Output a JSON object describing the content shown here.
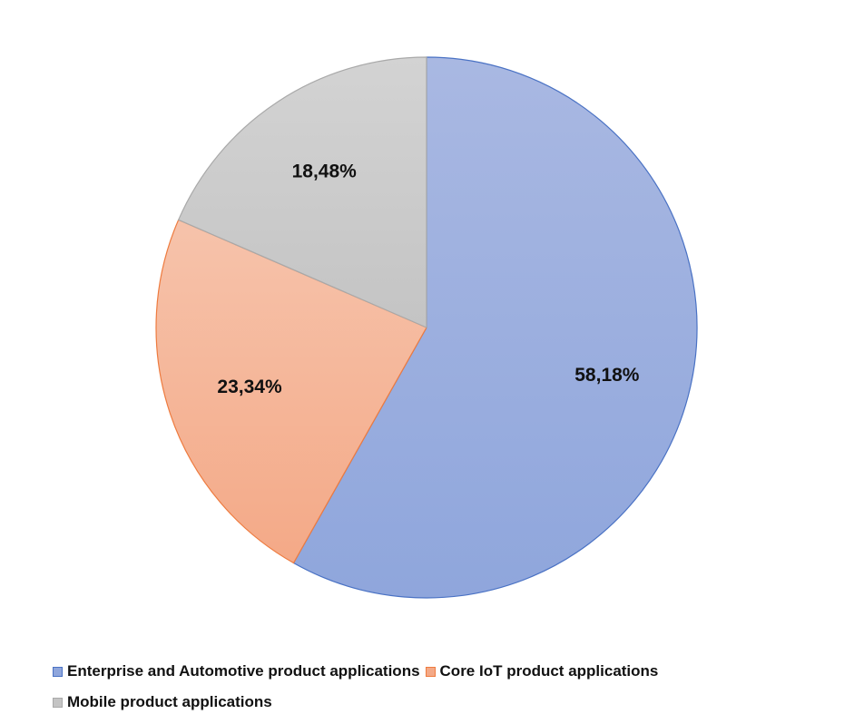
{
  "chart_data": {
    "type": "pie",
    "title": "",
    "legend_position": "bottom",
    "start_angle_deg": 0,
    "direction": "clockwise",
    "slices": [
      {
        "name": "Enterprise and Automotive product applications",
        "value": 58.18,
        "label": "58,18%",
        "color": "#8fa6dc",
        "color_light": "#a9b8e2",
        "stroke": "#4a72c4"
      },
      {
        "name": "Core IoT product applications",
        "value": 23.34,
        "label": "23,34%",
        "color": "#f4a987",
        "color_light": "#f6c3ab",
        "stroke": "#ee7b3f"
      },
      {
        "name": "Mobile product applications",
        "value": 18.48,
        "label": "18,48%",
        "color": "#c4c4c4",
        "color_light": "#d3d3d3",
        "stroke": "#a9a9a9"
      }
    ]
  }
}
